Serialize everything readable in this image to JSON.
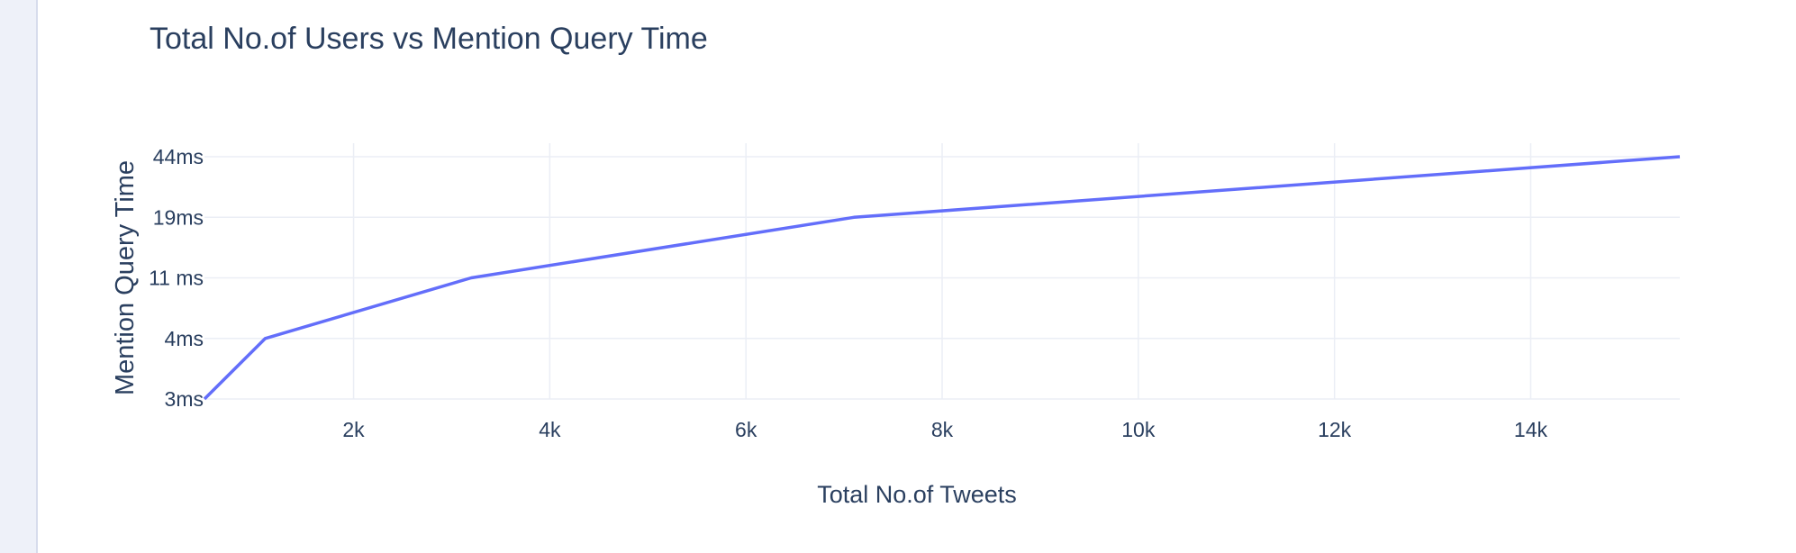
{
  "chart_data": {
    "type": "line",
    "title": "Total No.of Users vs Mention Query Time",
    "xlabel": "Total No.of Tweets",
    "ylabel": "Mention Query Time",
    "xlim": [
      480,
      15520
    ],
    "x_ticks": [
      2000,
      4000,
      6000,
      8000,
      10000,
      12000,
      14000
    ],
    "x_tick_labels": [
      "2k",
      "4k",
      "6k",
      "8k",
      "10k",
      "12k",
      "14k"
    ],
    "y_axis_type": "category",
    "y_categories": [
      "3ms",
      "4ms",
      "11 ms",
      "19ms",
      "44ms"
    ],
    "series": [
      {
        "x": [
          480,
          1100,
          3200,
          7100,
          15520
        ],
        "y": [
          "3ms",
          "4ms",
          "11 ms",
          "19ms",
          "44ms"
        ],
        "color": "#636efa"
      }
    ],
    "grid": true,
    "line_color": "#636efa",
    "grid_color": "#ebeef5"
  }
}
